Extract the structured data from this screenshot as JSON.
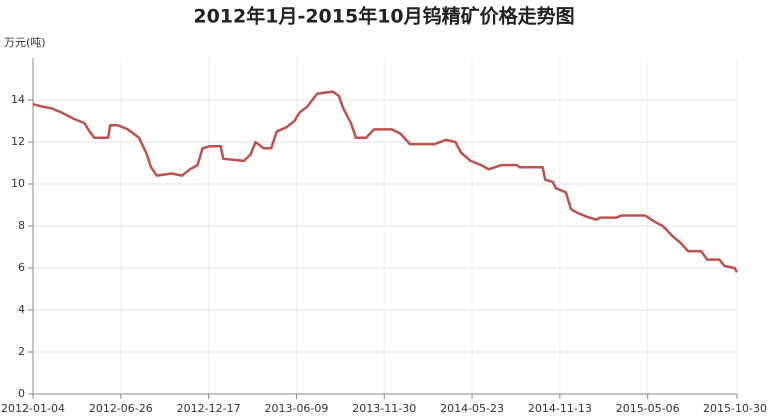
{
  "chart_data": {
    "type": "line",
    "title": "2012年1月-2015年10月钨精矿价格走势图",
    "y_label": "万元(吨)",
    "x": [
      "2012-01-04",
      "2012-01-20",
      "2012-02-10",
      "2012-03-01",
      "2012-03-25",
      "2012-04-15",
      "2012-04-25",
      "2012-05-05",
      "2012-06-01",
      "2012-06-05",
      "2012-06-20",
      "2012-07-10",
      "2012-08-01",
      "2012-08-15",
      "2012-08-25",
      "2012-09-05",
      "2012-10-05",
      "2012-10-25",
      "2012-11-10",
      "2012-11-25",
      "2012-12-05",
      "2012-12-20",
      "2013-01-10",
      "2013-01-15",
      "2013-02-25",
      "2013-03-10",
      "2013-03-20",
      "2013-04-05",
      "2013-04-20",
      "2013-05-01",
      "2013-05-20",
      "2013-06-05",
      "2013-06-15",
      "2013-07-01",
      "2013-07-20",
      "2013-08-20",
      "2013-09-01",
      "2013-09-10",
      "2013-09-25",
      "2013-10-05",
      "2013-10-25",
      "2013-11-10",
      "2013-12-15",
      "2014-01-01",
      "2014-01-20",
      "2014-03-10",
      "2014-04-01",
      "2014-04-20",
      "2014-05-01",
      "2014-05-20",
      "2014-06-10",
      "2014-06-25",
      "2014-07-20",
      "2014-08-20",
      "2014-08-25",
      "2014-10-10",
      "2014-10-15",
      "2014-10-30",
      "2014-11-05",
      "2014-11-25",
      "2014-12-05",
      "2014-12-20",
      "2015-01-10",
      "2015-01-25",
      "2015-02-01",
      "2015-03-05",
      "2015-03-15",
      "2015-05-01",
      "2015-05-20",
      "2015-06-05",
      "2015-06-25",
      "2015-07-10",
      "2015-07-25",
      "2015-08-20",
      "2015-09-01",
      "2015-09-25",
      "2015-10-05",
      "2015-10-25",
      "2015-10-30"
    ],
    "series": [
      {
        "name": "钨精矿价格",
        "color": "#c0504d",
        "values": [
          13.8,
          13.7,
          13.6,
          13.4,
          13.1,
          12.9,
          12.5,
          12.2,
          12.2,
          12.8,
          12.8,
          12.6,
          12.2,
          11.5,
          10.8,
          10.4,
          10.5,
          10.4,
          10.7,
          10.9,
          11.7,
          11.8,
          11.8,
          11.2,
          11.1,
          11.4,
          12.0,
          11.7,
          11.7,
          12.5,
          12.7,
          13.0,
          13.4,
          13.7,
          14.3,
          14.4,
          14.2,
          13.6,
          12.9,
          12.2,
          12.2,
          12.6,
          12.6,
          12.4,
          11.9,
          11.9,
          12.1,
          12.0,
          11.5,
          11.1,
          10.9,
          10.7,
          10.9,
          10.9,
          10.8,
          10.8,
          10.2,
          10.1,
          9.8,
          9.6,
          8.8,
          8.6,
          8.4,
          8.3,
          8.4,
          8.4,
          8.5,
          8.5,
          8.2,
          8.0,
          7.5,
          7.2,
          6.8,
          6.8,
          6.4,
          6.4,
          6.1,
          6.0,
          5.8
        ]
      }
    ],
    "xlim": [
      "2012-01-04",
      "2015-10-30"
    ],
    "xticks": [
      "2012-01-04",
      "2012-06-26",
      "2012-12-17",
      "2013-06-09",
      "2013-11-30",
      "2014-05-23",
      "2014-11-13",
      "2015-05-06",
      "2015-10-30"
    ],
    "ylim": [
      0,
      16
    ],
    "yticks": [
      0,
      2,
      4,
      6,
      8,
      10,
      12,
      14
    ],
    "grid": true
  }
}
